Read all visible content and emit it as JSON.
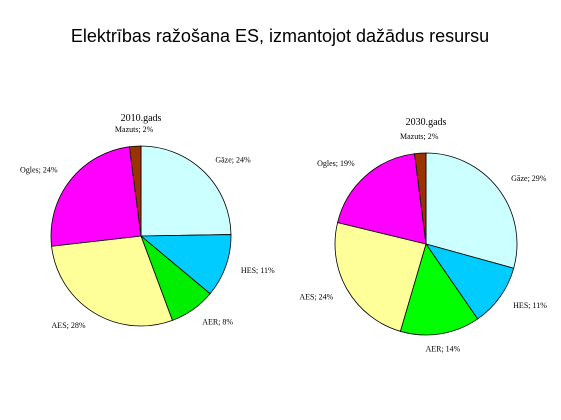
{
  "title": "Elektrības ražošana ES, izmantojot dažādus resursu",
  "chart_data": [
    {
      "type": "pie",
      "title": "2010.gads",
      "values": [
        24,
        11,
        8,
        28,
        24,
        2
      ],
      "value_labels": [
        "Gāze; 24%",
        "HES; 11%",
        "AER; 8%",
        "AES; 28%",
        "Ogles; 24%",
        "Mazuts; 2%"
      ],
      "colors": [
        "#ccffff",
        "#00ccff",
        "#00ee00",
        "#ffff99",
        "#ff00ff",
        "#993300"
      ]
    },
    {
      "type": "pie",
      "title": "2030.gads",
      "values": [
        29,
        11,
        14,
        24,
        19,
        2
      ],
      "value_labels": [
        "Gāze; 29%",
        "HES; 11%",
        "AER; 14%",
        "AES; 24%",
        "Ogles; 19%",
        "Mazuts; 2%"
      ],
      "colors": [
        "#ccffff",
        "#00ccff",
        "#00ff00",
        "#ffff99",
        "#ff00ff",
        "#993300"
      ]
    }
  ]
}
